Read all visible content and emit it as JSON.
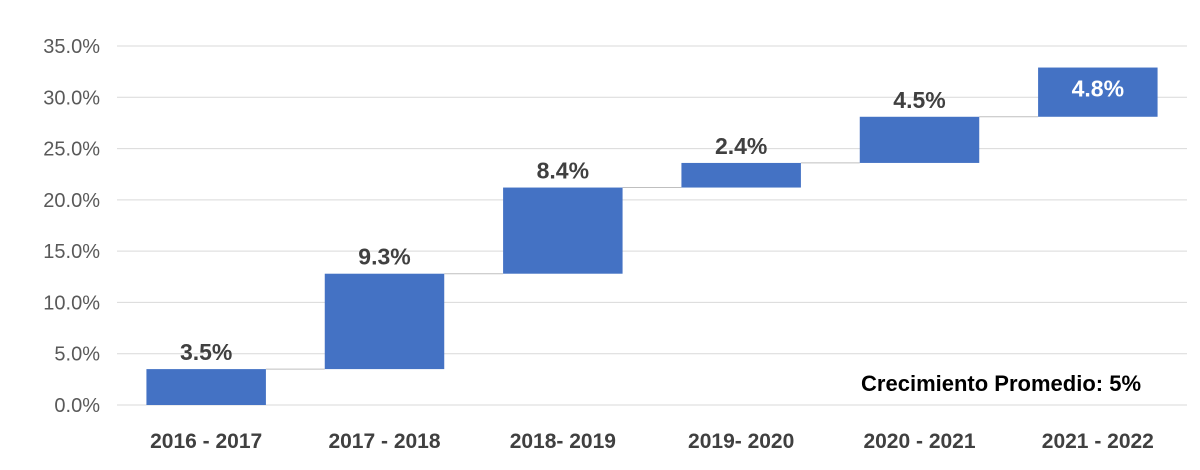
{
  "chart_data": {
    "type": "bar",
    "subtype": "waterfall",
    "categories": [
      "2016 - 2017",
      "2017 - 2018",
      "2018- 2019",
      "2019- 2020",
      "2020 - 2021",
      "2021 - 2022"
    ],
    "values": [
      3.5,
      9.3,
      8.4,
      2.4,
      4.5,
      4.8
    ],
    "data_labels": [
      "3.5%",
      "9.3%",
      "8.4%",
      "2.4%",
      "4.5%",
      "4.8%"
    ],
    "ylim": [
      0,
      35
    ],
    "y_ticks": [
      "0.0%",
      "5.0%",
      "10.0%",
      "15.0%",
      "20.0%",
      "25.0%",
      "30.0%",
      "35.0%"
    ],
    "grid": true,
    "bar_color": "#4472C4",
    "annotation": "Crecimiento Promedio: 5%"
  }
}
